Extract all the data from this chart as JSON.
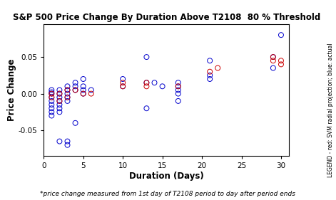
{
  "title": "S&P 500 Price Change By Duration Above T2108  80 % Threshold",
  "xlabel": "Duration (Days)",
  "ylabel": "Price Change",
  "footnote": "*price change measured from 1st day of T2108 period to day after period ends",
  "legend_text": "LEGEND - red: SVM radial projection; blue: actual",
  "xlim": [
    0,
    31
  ],
  "ylim": [
    -0.085,
    0.095
  ],
  "yticks": [
    -0.05,
    0.0,
    0.05
  ],
  "xticks": [
    0,
    5,
    10,
    15,
    20,
    25,
    30
  ],
  "blue_x": [
    1,
    1,
    1,
    1,
    1,
    1,
    1,
    1,
    1,
    2,
    2,
    2,
    2,
    2,
    2,
    2,
    2,
    3,
    3,
    3,
    3,
    3,
    3,
    3,
    4,
    4,
    4,
    4,
    5,
    5,
    5,
    5,
    6,
    10,
    10,
    13,
    13,
    13,
    14,
    15,
    17,
    17,
    17,
    17,
    17,
    21,
    21,
    21,
    29,
    29,
    30
  ],
  "blue_y": [
    0.005,
    0.002,
    0.0,
    -0.005,
    -0.01,
    -0.015,
    -0.02,
    -0.025,
    -0.03,
    0.005,
    0.0,
    -0.005,
    -0.01,
    -0.015,
    -0.02,
    -0.025,
    -0.065,
    0.01,
    0.005,
    0.0,
    -0.005,
    -0.01,
    -0.065,
    -0.07,
    0.015,
    0.01,
    0.005,
    -0.04,
    0.02,
    0.01,
    0.005,
    0.0,
    0.005,
    0.02,
    0.01,
    0.05,
    0.015,
    -0.02,
    0.015,
    0.01,
    0.015,
    0.01,
    0.005,
    0.0,
    -0.01,
    0.045,
    0.025,
    0.02,
    0.05,
    0.035,
    0.08
  ],
  "red_x": [
    1,
    1,
    2,
    2,
    3,
    3,
    4,
    5,
    6,
    10,
    10,
    13,
    13,
    17,
    21,
    22,
    29,
    29,
    30,
    30
  ],
  "red_y": [
    0.0,
    -0.005,
    0.0,
    -0.01,
    0.005,
    -0.005,
    0.005,
    0.0,
    0.0,
    0.015,
    0.01,
    0.015,
    0.01,
    0.01,
    0.03,
    0.035,
    0.05,
    0.045,
    0.045,
    0.04
  ],
  "bg_color": "#ffffff",
  "blue_color": "#0000cc",
  "red_color": "#cc0000",
  "marker_size": 5,
  "title_fontsize": 8.5,
  "label_fontsize": 8.5,
  "tick_fontsize": 7.5,
  "footnote_fontsize": 6.5
}
